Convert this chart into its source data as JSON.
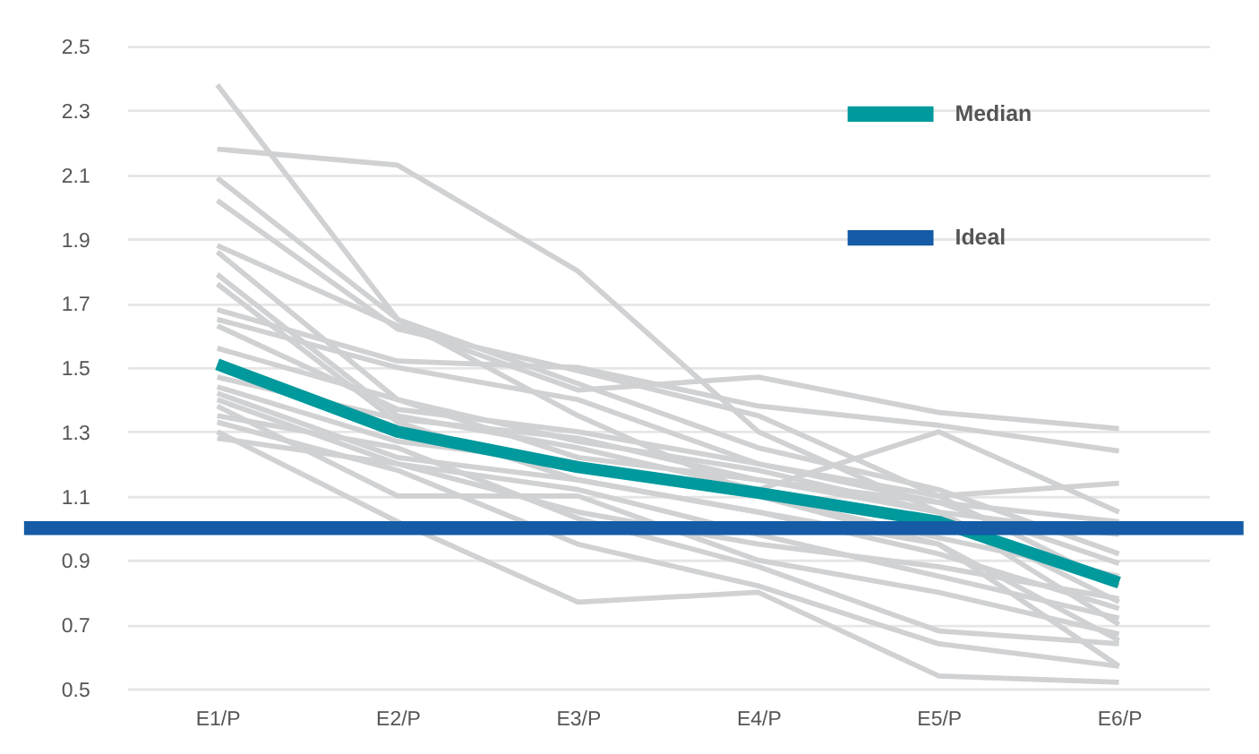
{
  "chart_data": {
    "type": "line",
    "categories": [
      "E1/P",
      "E2/P",
      "E3/P",
      "E4/P",
      "E5/P",
      "E6/P"
    ],
    "series": [
      {
        "color": "#d0d1d3",
        "values": [
          2.38,
          1.65,
          1.35,
          1.1,
          0.95,
          0.65
        ]
      },
      {
        "color": "#d0d1d3",
        "values": [
          2.18,
          2.13,
          1.8,
          1.3,
          1.05,
          0.77
        ]
      },
      {
        "color": "#d0d1d3",
        "values": [
          2.09,
          1.65,
          1.45,
          1.25,
          1.12,
          0.92
        ]
      },
      {
        "color": "#d0d1d3",
        "values": [
          2.02,
          1.62,
          1.49,
          1.35,
          1.1,
          0.82
        ]
      },
      {
        "color": "#d0d1d3",
        "values": [
          1.88,
          1.63,
          1.43,
          1.47,
          1.36,
          1.31
        ]
      },
      {
        "color": "#d0d1d3",
        "values": [
          1.86,
          1.4,
          1.27,
          1.18,
          1.05,
          0.7
        ]
      },
      {
        "color": "#d0d1d3",
        "values": [
          1.79,
          1.35,
          1.25,
          1.12,
          1.3,
          1.05
        ]
      },
      {
        "color": "#d0d1d3",
        "values": [
          1.76,
          1.33,
          1.15,
          1.05,
          0.95,
          0.57
        ]
      },
      {
        "color": "#d0d1d3",
        "values": [
          1.68,
          1.52,
          1.5,
          1.38,
          1.32,
          1.24
        ]
      },
      {
        "color": "#d0d1d3",
        "values": [
          1.65,
          1.5,
          1.4,
          1.2,
          1.1,
          1.14
        ]
      },
      {
        "color": "#d0d1d3",
        "values": [
          1.63,
          1.37,
          1.3,
          1.2,
          1.08,
          1.02
        ]
      },
      {
        "color": "#d0d1d3",
        "values": [
          1.56,
          1.4,
          1.22,
          1.15,
          1.05,
          0.98
        ]
      },
      {
        "color": "#d0d1d3",
        "values": [
          1.47,
          1.34,
          1.28,
          1.15,
          1.08,
          0.89
        ]
      },
      {
        "color": "#d0d1d3",
        "values": [
          1.44,
          1.27,
          1.2,
          1.1,
          0.97,
          0.85
        ]
      },
      {
        "color": "#d0d1d3",
        "values": [
          1.42,
          1.22,
          1.15,
          1.05,
          0.92,
          0.75
        ]
      },
      {
        "color": "#d0d1d3",
        "values": [
          1.4,
          1.2,
          1.12,
          0.98,
          0.85,
          0.72
        ]
      },
      {
        "color": "#d0d1d3",
        "values": [
          1.38,
          1.1,
          1.1,
          0.9,
          0.8,
          0.67
        ]
      },
      {
        "color": "#d0d1d3",
        "values": [
          1.35,
          1.25,
          1.03,
          0.88,
          0.68,
          0.64
        ]
      },
      {
        "color": "#d0d1d3",
        "values": [
          1.33,
          1.18,
          0.95,
          0.82,
          0.64,
          0.57
        ]
      },
      {
        "color": "#d0d1d3",
        "values": [
          1.3,
          1.02,
          0.77,
          0.8,
          0.54,
          0.52
        ]
      },
      {
        "color": "#d0d1d3",
        "values": [
          1.28,
          1.2,
          1.05,
          0.95,
          0.88,
          0.78
        ]
      },
      {
        "name": "Median",
        "color": "#00999c",
        "values": [
          1.51,
          1.3,
          1.19,
          1.11,
          1.02,
          0.83
        ]
      }
    ],
    "ref_lines": [
      {
        "axis": "y",
        "value": 1.0,
        "label": "Ideal",
        "color": "#155ba5"
      }
    ],
    "ylim": [
      0.5,
      2.5
    ],
    "yticks": [
      0.5,
      0.7,
      0.9,
      1.1,
      1.3,
      1.5,
      1.7,
      1.9,
      2.1,
      2.3,
      2.5
    ],
    "grid": "y",
    "legend": "top right"
  }
}
